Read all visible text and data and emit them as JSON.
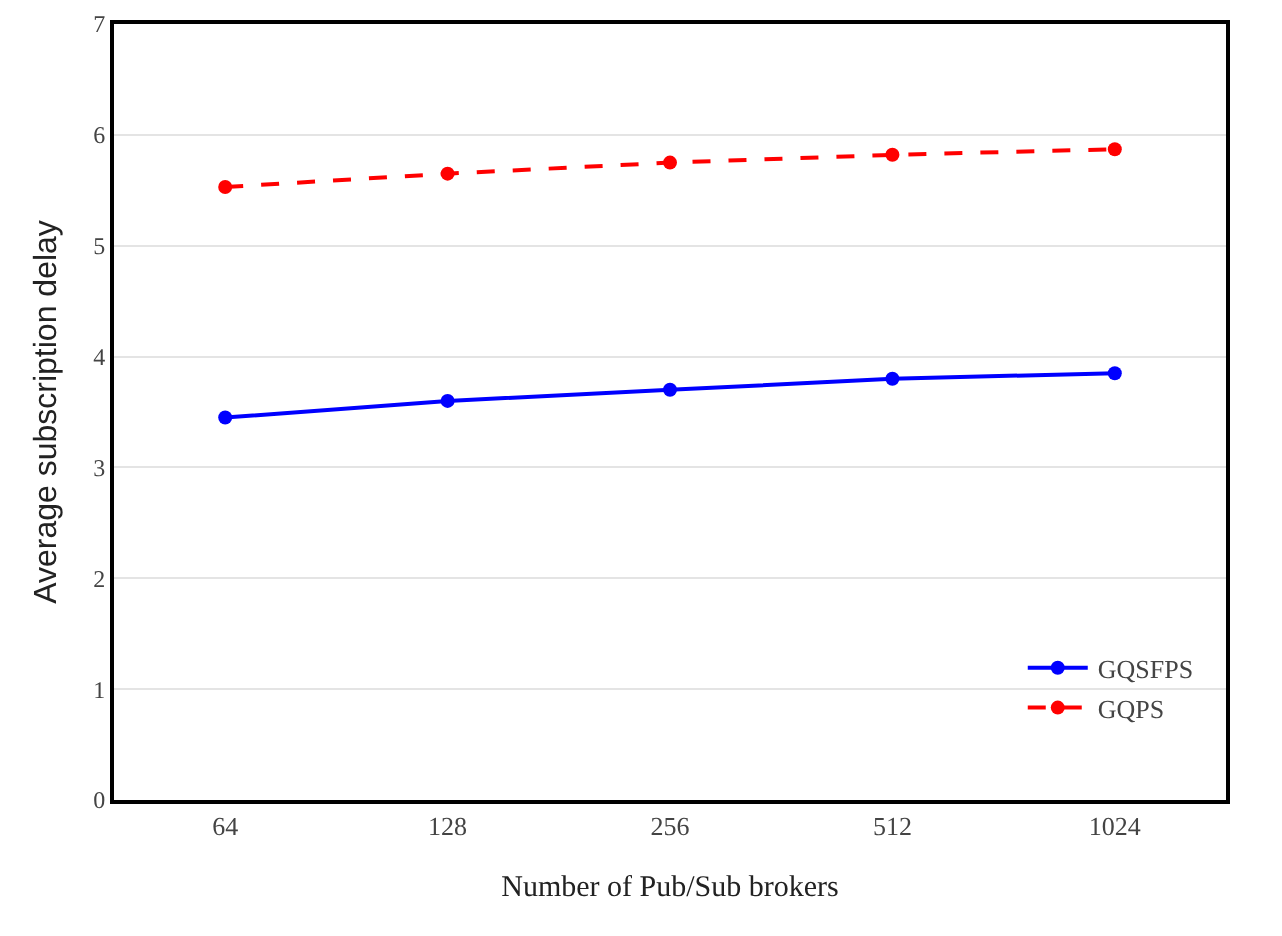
{
  "chart_data": {
    "type": "line",
    "xlabel": "Number of Pub/Sub brokers",
    "ylabel": "Average subscription delay",
    "categories": [
      "64",
      "128",
      "256",
      "512",
      "1024"
    ],
    "series": [
      {
        "name": "GQSFPS",
        "color": "#0000ff",
        "values": [
          3.45,
          3.6,
          3.7,
          3.8,
          3.85
        ],
        "line_style": "solid"
      },
      {
        "name": "GQPS",
        "color": "#ff0000",
        "values": [
          5.53,
          5.65,
          5.75,
          5.82,
          5.87
        ],
        "line_style": "dashed"
      }
    ],
    "ylim": [
      0,
      7
    ],
    "yticks": [
      0,
      1,
      2,
      3,
      4,
      5,
      6,
      7
    ],
    "grid": "y",
    "legend": "bottom right",
    "marker": "circle"
  }
}
